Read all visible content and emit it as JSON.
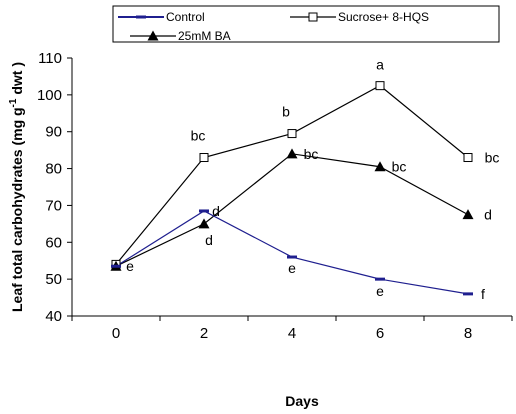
{
  "chart_data": {
    "type": "line",
    "xlabel": "Days",
    "ylabel_main": "Leaf total carbohydrates (mg g",
    "ylabel_sup": "-1",
    "ylabel_end": " dwt )",
    "x": [
      0,
      2,
      4,
      6,
      8
    ],
    "xlim": [
      -1,
      9
    ],
    "ylim": [
      40,
      110
    ],
    "yticks": [
      40,
      50,
      60,
      70,
      80,
      90,
      100,
      110
    ],
    "xticks": [
      0,
      2,
      4,
      6,
      8
    ],
    "grid": false,
    "legend_position": "top",
    "series": [
      {
        "name": "Control",
        "marker": "dash",
        "color": "#1f1f8f",
        "values": [
          53.5,
          68.5,
          56,
          50,
          46
        ],
        "annotations": [
          "e",
          "d",
          "e",
          "e",
          "f"
        ]
      },
      {
        "name": "Sucrose+ 8-HQS",
        "marker": "open-square",
        "color": "#000000",
        "values": [
          54,
          83,
          89.5,
          102.5,
          83
        ],
        "annotations": [
          "",
          "bc",
          "b",
          "a",
          "bc"
        ]
      },
      {
        "name": "25mM  BA",
        "marker": "filled-triangle",
        "color": "#000000",
        "values": [
          53.5,
          65,
          84,
          80.5,
          67.5
        ],
        "annotations": [
          "",
          "d",
          "bc",
          "bc",
          "d"
        ]
      }
    ]
  }
}
